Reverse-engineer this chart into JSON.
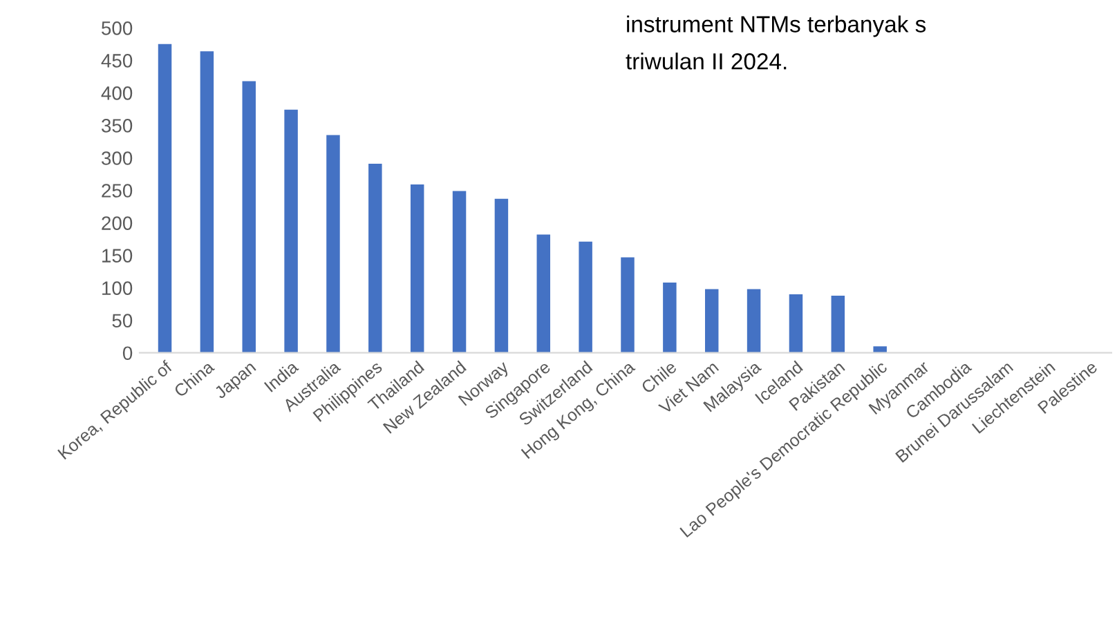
{
  "chart_data": {
    "type": "bar",
    "categories": [
      "Korea, Republic of",
      "China",
      "Japan",
      "India",
      "Australia",
      "Philippines",
      "Thailand",
      "New Zealand",
      "Norway",
      "Singapore",
      "Switzerland",
      "Hong Kong, China",
      "Chile",
      "Viet Nam",
      "Malaysia",
      "Iceland",
      "Pakistan",
      "Lao People's Democratic Republic",
      "Myanmar",
      "Cambodia",
      "Brunei Darussalam",
      "Liechtenstein",
      "Palestine"
    ],
    "values": [
      475,
      464,
      418,
      374,
      335,
      291,
      259,
      249,
      237,
      182,
      171,
      147,
      108,
      98,
      98,
      90,
      88,
      10,
      0,
      0,
      0,
      0,
      0
    ],
    "color": "#4472c4",
    "ylim": [
      0,
      500
    ],
    "yticks": [
      0,
      50,
      100,
      150,
      200,
      250,
      300,
      350,
      400,
      450,
      500
    ],
    "annotations": [
      "instrument NTMs terbanyak s",
      "triwulan II 2024."
    ]
  }
}
